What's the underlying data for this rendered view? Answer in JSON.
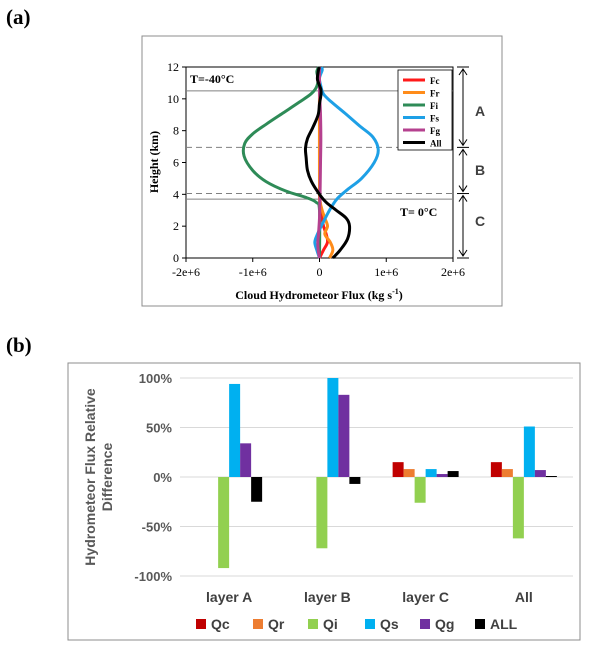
{
  "panel_a_label": "(a)",
  "panel_b_label": "(b)",
  "chart_data": [
    {
      "type": "line",
      "xlabel": "Cloud Hydrometeor Flux (kg s",
      "xlabel_sup": "-1",
      "xlabel_end": ")",
      "ylabel": "Height (km)",
      "xlim": [
        -2000000,
        2000000
      ],
      "ylim": [
        0,
        12
      ],
      "x_ticks": [
        "-2e+6",
        "-1e+6",
        "0",
        "1e+6",
        "2e+6"
      ],
      "y_ticks": [
        "0",
        "2",
        "4",
        "6",
        "8",
        "10",
        "12"
      ],
      "annotations": {
        "top_temp": "T=-40°C",
        "bottom_temp": "T=  0°C",
        "layer_a": "A",
        "layer_b": "B",
        "layer_c": "C"
      },
      "solid_lines_km": [
        10.5,
        3.7
      ],
      "dashed_lines_km": [
        6.95,
        4.05
      ],
      "layer_bounds_km": [
        12,
        6.95,
        4.05,
        0
      ],
      "legend_position": "top-right",
      "series": [
        {
          "name": "Fc",
          "color": "#ff1a1a",
          "points": [
            [
              0,
              0
            ],
            [
              60000,
              0.5
            ],
            [
              120000,
              1.0
            ],
            [
              100000,
              1.5
            ],
            [
              60000,
              2.0
            ],
            [
              40000,
              2.5
            ],
            [
              20000,
              3.0
            ],
            [
              10000,
              3.5
            ],
            [
              5000,
              4.0
            ],
            [
              0,
              5.0
            ],
            [
              0,
              12
            ]
          ]
        },
        {
          "name": "Fr",
          "color": "#ff8c1a",
          "points": [
            [
              150000,
              0
            ],
            [
              200000,
              0.5
            ],
            [
              160000,
              1.0
            ],
            [
              80000,
              1.5
            ],
            [
              120000,
              2.0
            ],
            [
              80000,
              2.5
            ],
            [
              40000,
              3.0
            ],
            [
              10000,
              3.5
            ],
            [
              0,
              4.0
            ],
            [
              0,
              12
            ]
          ]
        },
        {
          "name": "Fi",
          "color": "#2e8b57",
          "points": [
            [
              0,
              0
            ],
            [
              0,
              3.0
            ],
            [
              -50000,
              3.5
            ],
            [
              -200000,
              3.8
            ],
            [
              -500000,
              4.2
            ],
            [
              -800000,
              4.8
            ],
            [
              -1000000,
              5.5
            ],
            [
              -1130000,
              6.4
            ],
            [
              -1120000,
              7.2
            ],
            [
              -1000000,
              7.8
            ],
            [
              -800000,
              8.4
            ],
            [
              -550000,
              9.1
            ],
            [
              -300000,
              9.8
            ],
            [
              -130000,
              10.3
            ],
            [
              -50000,
              10.7
            ],
            [
              -20000,
              11.2
            ],
            [
              -40000,
              11.7
            ],
            [
              -10000,
              12.0
            ]
          ]
        },
        {
          "name": "Fs",
          "color": "#1ea0e6",
          "points": [
            [
              0,
              0
            ],
            [
              -40000,
              0.5
            ],
            [
              -70000,
              1.0
            ],
            [
              -30000,
              1.5
            ],
            [
              50000,
              2.2
            ],
            [
              150000,
              3.0
            ],
            [
              260000,
              3.7
            ],
            [
              420000,
              4.3
            ],
            [
              630000,
              5.0
            ],
            [
              820000,
              6.0
            ],
            [
              880000,
              6.8
            ],
            [
              800000,
              7.6
            ],
            [
              600000,
              8.3
            ],
            [
              380000,
              9.1
            ],
            [
              180000,
              9.8
            ],
            [
              60000,
              10.3
            ],
            [
              20000,
              10.8
            ],
            [
              0,
              11.3
            ],
            [
              40000,
              11.8
            ],
            [
              30000,
              12.0
            ]
          ]
        },
        {
          "name": "Fg",
          "color": "#b5418f",
          "points": [
            [
              0,
              0
            ],
            [
              -20000,
              0.5
            ],
            [
              -25000,
              1.0
            ],
            [
              -15000,
              1.5
            ],
            [
              0,
              2.5
            ],
            [
              5000,
              3.5
            ],
            [
              10000,
              4.5
            ],
            [
              15000,
              6.0
            ],
            [
              20000,
              7.5
            ],
            [
              15000,
              9.0
            ],
            [
              5000,
              10.0
            ],
            [
              0,
              10.5
            ],
            [
              0,
              12
            ]
          ]
        },
        {
          "name": "All",
          "color": "#000000",
          "points": [
            [
              200000,
              0
            ],
            [
              310000,
              0.5
            ],
            [
              420000,
              1.2
            ],
            [
              450000,
              2.0
            ],
            [
              400000,
              2.5
            ],
            [
              250000,
              3.0
            ],
            [
              100000,
              3.5
            ],
            [
              0,
              4.0
            ],
            [
              -120000,
              4.8
            ],
            [
              -180000,
              5.5
            ],
            [
              -200000,
              6.3
            ],
            [
              -210000,
              6.9
            ],
            [
              -180000,
              7.5
            ],
            [
              -100000,
              8.2
            ],
            [
              -20000,
              9.0
            ],
            [
              0,
              9.7
            ],
            [
              20000,
              10.2
            ],
            [
              20000,
              10.6
            ],
            [
              -30000,
              11.2
            ],
            [
              -20000,
              11.7
            ],
            [
              -5000,
              12.0
            ]
          ]
        }
      ]
    },
    {
      "type": "bar",
      "ylabel_line1": "Hydrometeor Flux  Relative",
      "ylabel_line2": "Difference",
      "ylim": [
        -100,
        100
      ],
      "y_ticks": [
        "100%",
        "50%",
        "0%",
        "-50%",
        "-100%"
      ],
      "categories": [
        "layer A",
        "layer B",
        "layer C",
        "All"
      ],
      "legend_position": "bottom",
      "series": [
        {
          "name": "Qc",
          "color": "#c00000",
          "values": [
            0,
            0,
            15,
            15
          ]
        },
        {
          "name": "Qr",
          "color": "#ed7d31",
          "values": [
            0,
            0,
            8,
            8
          ]
        },
        {
          "name": "Qi",
          "color": "#92d050",
          "values": [
            -92,
            -72,
            -26,
            -62
          ]
        },
        {
          "name": "Qs",
          "color": "#00b0f0",
          "values": [
            94,
            100,
            8,
            51
          ]
        },
        {
          "name": "Qg",
          "color": "#7030a0",
          "values": [
            34,
            83,
            3,
            7
          ]
        },
        {
          "name": "ALL",
          "color": "#000000",
          "values": [
            -25,
            -7,
            6,
            1
          ]
        }
      ]
    }
  ]
}
